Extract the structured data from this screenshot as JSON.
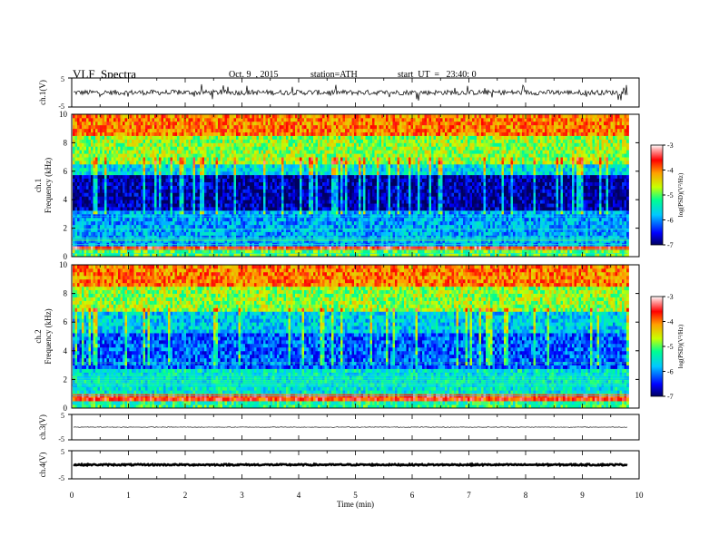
{
  "header": {
    "title": "VLF  Spectra",
    "date": "Oct. 9  , 2015",
    "station": "station=ATH",
    "start_ut": "start  UT  =   23:40: 0"
  },
  "colors": {
    "colormap": [
      "#000060",
      "#0000ff",
      "#00c8ff",
      "#00ff90",
      "#c8ff00",
      "#ffa000",
      "#ff0000",
      "#ffa0a0",
      "#ffffff"
    ]
  },
  "chart_data": [
    {
      "type": "line",
      "panel": "ch1",
      "ylabel": "ch.1(V)",
      "ylim": [
        -5,
        5
      ],
      "yticks": [
        "5",
        "-5"
      ],
      "xlim": [
        0,
        10
      ],
      "description_values": {
        "mean": 0,
        "typical_amplitude": 0.7
      }
    },
    {
      "type": "heatmap",
      "panel": "ch1-spectrogram",
      "ylabel_top": "ch.1",
      "ylabel": "Frequency  (kHz)",
      "ylim": [
        0,
        10
      ],
      "yticks": [
        "0",
        "2",
        "4",
        "6",
        "8",
        "10"
      ],
      "xlim": [
        0,
        10
      ],
      "data_end_min": 9.8,
      "colorbar": {
        "label": "log(PSD)(V²/Hz)",
        "range": [
          -7,
          -3
        ],
        "ticks": [
          "-3",
          "-4",
          "-5",
          "-6",
          "-7"
        ]
      },
      "bands_logpsd": [
        {
          "f": [
            0,
            0.4
          ],
          "v": -5.0
        },
        {
          "f": [
            0.4,
            0.8
          ],
          "v": -3.6
        },
        {
          "f": [
            0.8,
            3.2
          ],
          "v": -5.9
        },
        {
          "f": [
            3.2,
            5.8
          ],
          "v": -6.8
        },
        {
          "f": [
            5.8,
            6.6
          ],
          "v": -5.6
        },
        {
          "f": [
            6.6,
            8.4
          ],
          "v": -4.8
        },
        {
          "f": [
            8.4,
            10
          ],
          "v": -4.0
        }
      ]
    },
    {
      "type": "heatmap",
      "panel": "ch2-spectrogram",
      "ylabel_top": "ch.2",
      "ylabel": "Frequency  (kHz)",
      "ylim": [
        0,
        10
      ],
      "yticks": [
        "0",
        "2",
        "4",
        "6",
        "8",
        "10"
      ],
      "xlim": [
        0,
        10
      ],
      "data_end_min": 9.8,
      "colorbar": {
        "label": "log(PSD)(V²/Hz)",
        "range": [
          -7,
          -3
        ],
        "ticks": [
          "-3",
          "-4",
          "-5",
          "-6",
          "-7"
        ]
      },
      "bands_logpsd": [
        {
          "f": [
            0,
            0.4
          ],
          "v": -5.2
        },
        {
          "f": [
            0.4,
            1.0
          ],
          "v": -3.7
        },
        {
          "f": [
            1.0,
            2.8
          ],
          "v": -5.5
        },
        {
          "f": [
            2.8,
            5.2
          ],
          "v": -6.2
        },
        {
          "f": [
            5.2,
            6.8
          ],
          "v": -5.7
        },
        {
          "f": [
            6.8,
            8.4
          ],
          "v": -4.8
        },
        {
          "f": [
            8.4,
            10
          ],
          "v": -4.0
        }
      ]
    },
    {
      "type": "line",
      "panel": "ch3",
      "ylabel": "ch.3(V)",
      "ylim": [
        -5,
        5
      ],
      "yticks": [
        "5",
        "-5"
      ],
      "xlim": [
        0,
        10
      ],
      "description_values": {
        "mean": 0,
        "typical_amplitude": 0.05
      }
    },
    {
      "type": "line",
      "panel": "ch4",
      "ylabel": "ch.4(V)",
      "ylim": [
        -5,
        5
      ],
      "yticks": [
        "5",
        "-5"
      ],
      "xlim": [
        0,
        10
      ],
      "description_values": {
        "mean": 0,
        "typical_amplitude": 0.3
      }
    }
  ],
  "xaxis": {
    "label": "Time  (min)",
    "ticks": [
      "0",
      "1",
      "2",
      "3",
      "4",
      "5",
      "6",
      "7",
      "8",
      "9",
      "10"
    ]
  }
}
